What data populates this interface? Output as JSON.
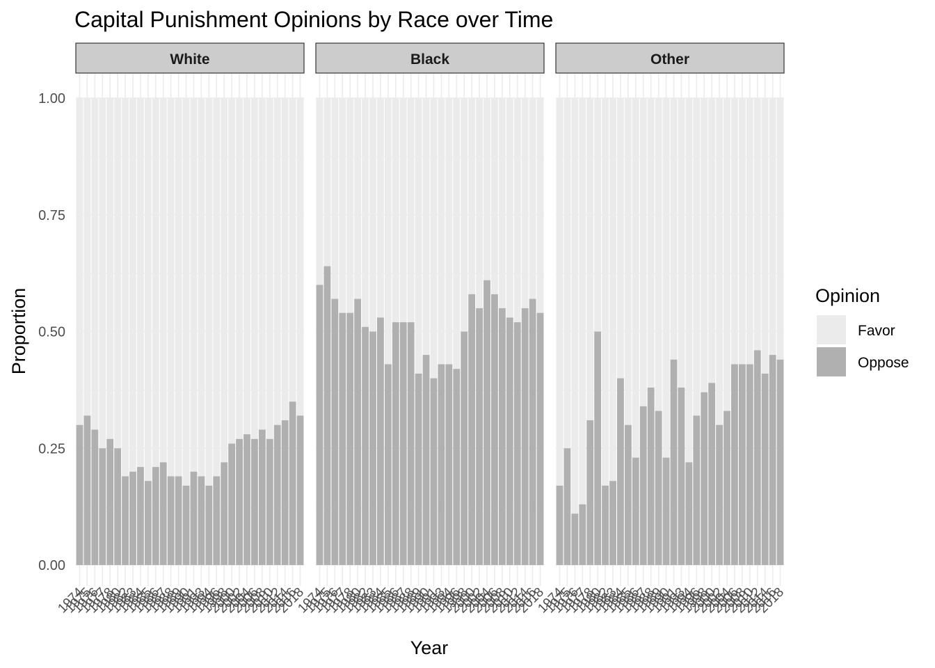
{
  "chart_data": {
    "type": "bar",
    "stacked": true,
    "title": "Capital Punishment Opinions by Race over Time",
    "xlabel": "Year",
    "ylabel": "Proportion",
    "ylim": [
      0,
      1
    ],
    "yticks": [
      "0.00",
      "0.25",
      "0.50",
      "0.75",
      "1.00"
    ],
    "yticks_values": [
      0,
      0.25,
      0.5,
      0.75,
      1
    ],
    "grid": true,
    "legend": {
      "title": "Opinion",
      "placement": "right",
      "entries": [
        {
          "label": "Favor",
          "color": "#ebebeb"
        },
        {
          "label": "Oppose",
          "color": "#b0b0b0"
        }
      ]
    },
    "colors": {
      "favor": "#ebebeb",
      "oppose": "#b0b0b0",
      "strip_fill": "#cccccc",
      "grid": "#ffffff"
    },
    "panels": [
      {
        "name": "White",
        "categories": [
          "1974",
          "1975",
          "1976",
          "1977",
          "1978",
          "1980",
          "1982",
          "1983",
          "1984",
          "1985",
          "1986",
          "1987",
          "1988",
          "1989",
          "1990",
          "1991",
          "1993",
          "1994",
          "1996",
          "1998",
          "2000",
          "2002",
          "2004",
          "2006",
          "2008",
          "2010",
          "2012",
          "2014",
          "2016",
          "2018"
        ],
        "oppose": [
          0.3,
          0.32,
          0.29,
          0.25,
          0.27,
          0.25,
          0.19,
          0.2,
          0.21,
          0.18,
          0.21,
          0.22,
          0.19,
          0.19,
          0.17,
          0.2,
          0.19,
          0.17,
          0.19,
          0.22,
          0.26,
          0.27,
          0.28,
          0.27,
          0.29,
          0.27,
          0.3,
          0.31,
          0.35,
          0.32
        ],
        "favor": [
          0.7,
          0.68,
          0.71,
          0.75,
          0.73,
          0.75,
          0.81,
          0.8,
          0.79,
          0.82,
          0.79,
          0.78,
          0.81,
          0.81,
          0.83,
          0.8,
          0.81,
          0.83,
          0.81,
          0.78,
          0.74,
          0.73,
          0.72,
          0.73,
          0.71,
          0.73,
          0.7,
          0.69,
          0.65,
          0.68
        ]
      },
      {
        "name": "Black",
        "categories": [
          "1974",
          "1975",
          "1976",
          "1977",
          "1978",
          "1980",
          "1982",
          "1983",
          "1984",
          "1985",
          "1986",
          "1987",
          "1988",
          "1989",
          "1990",
          "1991",
          "1993",
          "1994",
          "1996",
          "1998",
          "2000",
          "2002",
          "2004",
          "2006",
          "2008",
          "2010",
          "2012",
          "2014",
          "2016",
          "2018"
        ],
        "oppose": [
          0.6,
          0.64,
          0.57,
          0.54,
          0.54,
          0.57,
          0.51,
          0.5,
          0.53,
          0.43,
          0.52,
          0.52,
          0.52,
          0.41,
          0.45,
          0.4,
          0.43,
          0.43,
          0.42,
          0.5,
          0.58,
          0.55,
          0.61,
          0.58,
          0.55,
          0.53,
          0.52,
          0.55,
          0.57,
          0.54
        ],
        "favor": [
          0.4,
          0.36,
          0.43,
          0.46,
          0.46,
          0.43,
          0.49,
          0.5,
          0.47,
          0.57,
          0.48,
          0.48,
          0.48,
          0.59,
          0.55,
          0.6,
          0.57,
          0.57,
          0.58,
          0.5,
          0.42,
          0.45,
          0.39,
          0.42,
          0.45,
          0.47,
          0.48,
          0.45,
          0.43,
          0.46
        ]
      },
      {
        "name": "Other",
        "categories": [
          "1974",
          "1975",
          "1976",
          "1977",
          "1978",
          "1980",
          "1982",
          "1983",
          "1984",
          "1985",
          "1986",
          "1987",
          "1988",
          "1989",
          "1990",
          "1991",
          "1993",
          "1994",
          "1996",
          "1998",
          "2000",
          "2002",
          "2004",
          "2006",
          "2008",
          "2010",
          "2012",
          "2014",
          "2016",
          "2018"
        ],
        "oppose": [
          0.17,
          0.25,
          0.11,
          0.13,
          0.31,
          0.5,
          0.17,
          0.18,
          0.4,
          0.3,
          0.23,
          0.34,
          0.38,
          0.33,
          0.23,
          0.44,
          0.38,
          0.22,
          0.32,
          0.37,
          0.39,
          0.3,
          0.33,
          0.43,
          0.43,
          0.43,
          0.46,
          0.41,
          0.45,
          0.44
        ],
        "favor": [
          0.83,
          0.75,
          0.89,
          0.87,
          0.69,
          0.5,
          0.83,
          0.82,
          0.6,
          0.7,
          0.77,
          0.66,
          0.62,
          0.67,
          0.77,
          0.56,
          0.62,
          0.78,
          0.68,
          0.63,
          0.61,
          0.7,
          0.67,
          0.57,
          0.57,
          0.57,
          0.54,
          0.59,
          0.55,
          0.56
        ]
      }
    ]
  }
}
